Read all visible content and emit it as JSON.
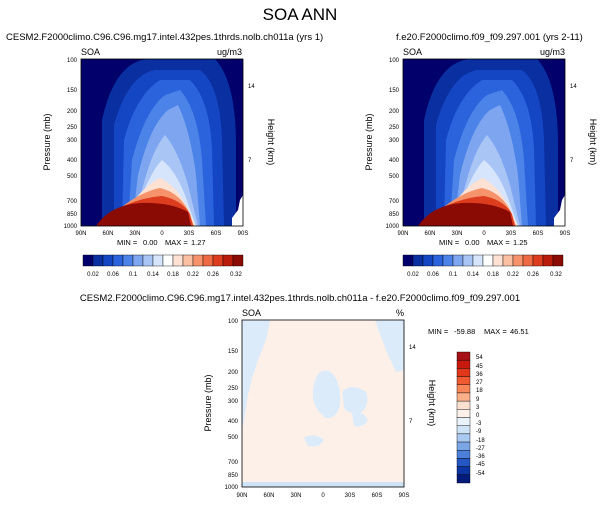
{
  "page_title": "SOA ANN",
  "chart_data": [
    {
      "type": "heatmap",
      "title": "CESM2.F2000climo.C96.C96.mg17.intel.432pes.1thrds.nolb.ch011a (yrs 1)",
      "variable": "SOA",
      "units": "ug/m3",
      "xlabel": "",
      "ylabel": "Pressure (mb)",
      "right_label": "Height (km)",
      "x_ticks": [
        "90N",
        "60N",
        "30N",
        "0",
        "30S",
        "60S",
        "90S"
      ],
      "y_ticks": [
        "100",
        "150",
        "200",
        "250",
        "300",
        "400",
        "500",
        "700",
        "850",
        "1000"
      ],
      "right_ticks": [
        "14",
        "7"
      ],
      "stats": {
        "min_label": "MIN =",
        "min": "0.00",
        "max_label": "MAX =",
        "max": "1.27"
      },
      "colorbar_labels": [
        "0.02",
        "0.06",
        "0.1",
        "0.14",
        "0.18",
        "0.22",
        "0.26",
        "0.32"
      ],
      "colorbar_colors": [
        "#02006b",
        "#0a2fa0",
        "#1446c4",
        "#2a63dc",
        "#4b83e8",
        "#7ea6f0",
        "#a9c5f5",
        "#d6e5fb",
        "#ffffff",
        "#fde1d3",
        "#fbbfa1",
        "#f6936b",
        "#ee6a43",
        "#dc3d1f",
        "#b91c0a",
        "#8a0a04"
      ]
    },
    {
      "type": "heatmap",
      "title": "f.e20.F2000climo.f09_f09.297.001 (yrs 2-11)",
      "variable": "SOA",
      "units": "ug/m3",
      "xlabel": "",
      "ylabel": "Pressure (mb)",
      "right_label": "Height (km)",
      "x_ticks": [
        "90N",
        "60N",
        "30N",
        "0",
        "30S",
        "60S",
        "90S"
      ],
      "y_ticks": [
        "100",
        "150",
        "200",
        "250",
        "300",
        "400",
        "500",
        "700",
        "850",
        "1000"
      ],
      "right_ticks": [
        "14",
        "7"
      ],
      "stats": {
        "min_label": "MIN =",
        "min": "0.00",
        "max_label": "MAX =",
        "max": "1.25"
      },
      "colorbar_labels": [
        "0.02",
        "0.06",
        "0.1",
        "0.14",
        "0.18",
        "0.22",
        "0.26",
        "0.32"
      ],
      "colorbar_colors": [
        "#02006b",
        "#0a2fa0",
        "#1446c4",
        "#2a63dc",
        "#4b83e8",
        "#7ea6f0",
        "#a9c5f5",
        "#d6e5fb",
        "#ffffff",
        "#fde1d3",
        "#fbbfa1",
        "#f6936b",
        "#ee6a43",
        "#dc3d1f",
        "#b91c0a",
        "#8a0a04"
      ]
    },
    {
      "type": "heatmap",
      "title": "CESM2.F2000climo.C96.C96.mg17.intel.432pes.1thrds.nolb.ch011a - f.e20.F2000climo.f09_f09.297.001",
      "variable": "SOA",
      "units": "%",
      "xlabel": "",
      "ylabel": "Pressure (mb)",
      "right_label": "Height (km)",
      "x_ticks": [
        "90N",
        "60N",
        "30N",
        "0",
        "30S",
        "60S",
        "90S"
      ],
      "y_ticks": [
        "100",
        "150",
        "200",
        "250",
        "300",
        "400",
        "500",
        "700",
        "850",
        "1000"
      ],
      "right_ticks": [
        "14",
        "7"
      ],
      "stats": {
        "min_label": "MIN =",
        "min": "-59.88",
        "max_label": "MAX =",
        "max": "46.51"
      },
      "colorbar_labels": [
        "54",
        "45",
        "36",
        "27",
        "18",
        "9",
        "3",
        "0",
        "-3",
        "-9",
        "-18",
        "-27",
        "-36",
        "-45",
        "-54"
      ],
      "colorbar_colors": [
        "#a50f15",
        "#c8190f",
        "#e0361a",
        "#f05a33",
        "#f88659",
        "#fbb08a",
        "#fde0cf",
        "#fdf0e8",
        "#eaf3fb",
        "#cfe3f7",
        "#a9c9f0",
        "#7aa6e6",
        "#4b7fd9",
        "#2456c4",
        "#0c34a3",
        "#021a7a"
      ]
    }
  ]
}
